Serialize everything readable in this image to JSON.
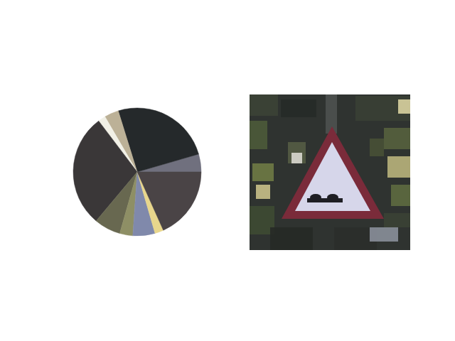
{
  "chart_data": {
    "type": "pie",
    "values": [
      4.5,
      25.3,
      3.6,
      1.9,
      28.6,
      6.7,
      3.3,
      5.6,
      2.2,
      18.3
    ],
    "colors": [
      "#70707e",
      "#25292b",
      "#bcb197",
      "#f1f0e6",
      "#3a3738",
      "#686850",
      "#8e8f65",
      "#8089ab",
      "#e8d68c",
      "#4a4446"
    ]
  }
}
